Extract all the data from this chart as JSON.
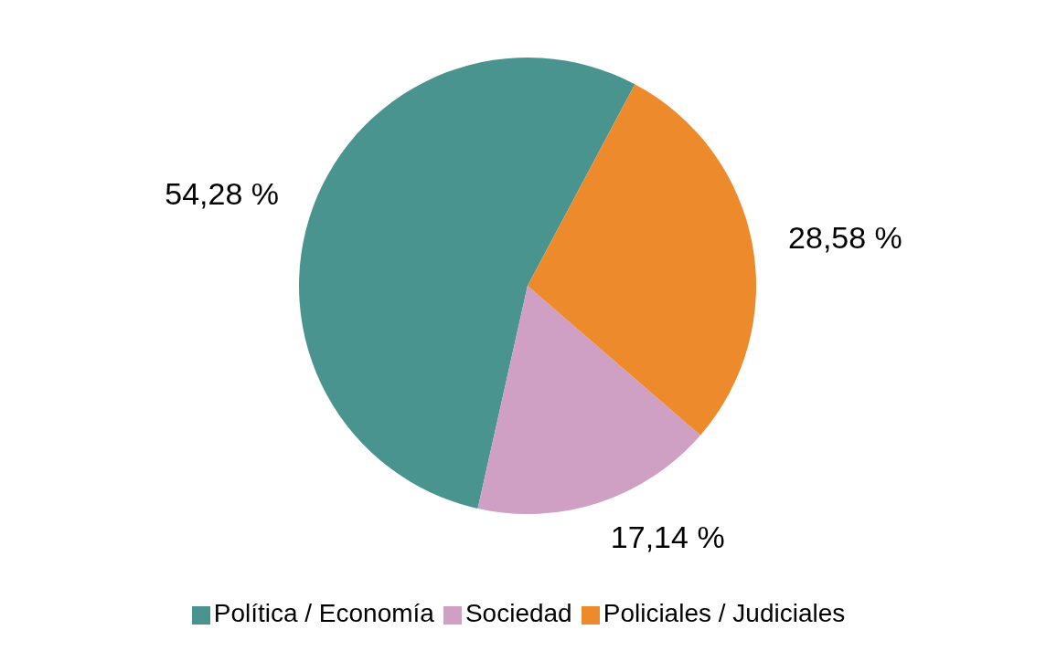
{
  "chart_data": {
    "type": "pie",
    "categories": [
      "Política / Economía",
      "Sociedad",
      "Policiales / Judiciales"
    ],
    "values": [
      54.28,
      17.14,
      28.58
    ],
    "colors": [
      "#4a9490",
      "#d0a0c4",
      "#ec8a2c"
    ],
    "value_labels": [
      "54,28 %",
      "17,14 %",
      "28,58 %"
    ],
    "legend": "bottom"
  }
}
